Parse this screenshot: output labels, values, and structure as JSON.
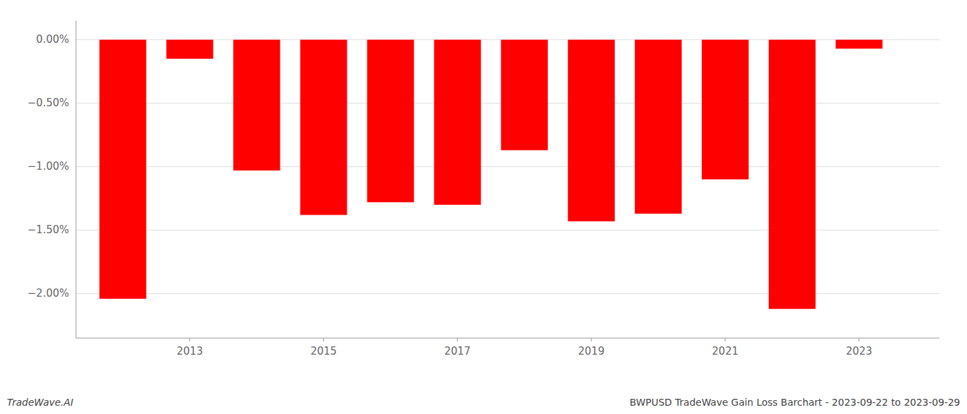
{
  "chart_data": {
    "type": "bar",
    "title": "BWPUSD TradeWave Gain Loss Barchart - 2023-09-22 to 2023-09-29",
    "annotations": [
      "TradeWave.AI"
    ],
    "x": [
      2012,
      2013,
      2014,
      2015,
      2016,
      2017,
      2018,
      2019,
      2020,
      2021,
      2022,
      2023
    ],
    "values": [
      -2.04,
      -0.15,
      -1.03,
      -1.38,
      -1.28,
      -1.3,
      -0.87,
      -1.43,
      -1.37,
      -1.1,
      -2.12,
      -0.07
    ],
    "color": "#ff0000",
    "xlim": [
      2011.3,
      2024.2
    ],
    "xticks": [
      2013,
      2015,
      2017,
      2019,
      2021,
      2023
    ],
    "ylim": [
      -2.35,
      0.15
    ],
    "yticks": [
      {
        "value": 0.0,
        "label": "0.00%"
      },
      {
        "value": -0.5,
        "label": "−0.50%"
      },
      {
        "value": -1.0,
        "label": "−1.00%"
      },
      {
        "value": -1.5,
        "label": "−1.50%"
      },
      {
        "value": -2.0,
        "label": "−2.00%"
      }
    ],
    "grid": true
  }
}
